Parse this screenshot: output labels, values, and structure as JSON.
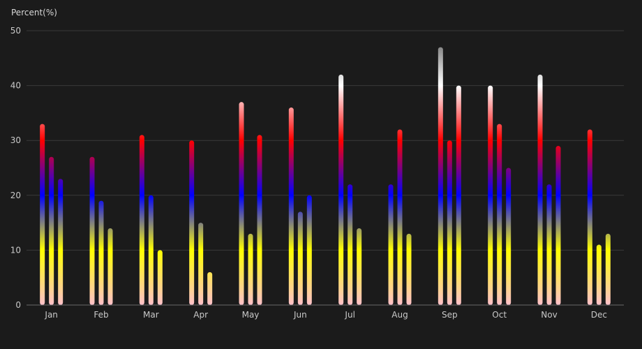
{
  "chart_data": {
    "type": "bar",
    "ylabel": "Percent(%)",
    "ylim": [
      0,
      50
    ],
    "yticks": [
      "0",
      "10",
      "20",
      "30",
      "40",
      "50"
    ],
    "categories": [
      "Jan",
      "Feb",
      "Mar",
      "Apr",
      "May",
      "Jun",
      "Jul",
      "Aug",
      "Sep",
      "Oct",
      "Nov",
      "Dec"
    ],
    "series": [
      {
        "values": [
          33,
          27,
          31,
          30,
          37,
          36,
          42,
          22,
          47,
          40,
          42,
          32
        ]
      },
      {
        "values": [
          27,
          19,
          20,
          15,
          13,
          17,
          22,
          32,
          30,
          33,
          22,
          11
        ]
      },
      {
        "values": [
          23,
          14,
          10,
          6,
          31,
          20,
          14,
          13,
          40,
          25,
          29,
          13
        ]
      }
    ],
    "gradient": {
      "description_stops": [
        {
          "value": 0,
          "color": "#ffc0cb"
        },
        {
          "value": 10,
          "color": "#ffff00"
        },
        {
          "value": 20,
          "color": "#0000ff"
        },
        {
          "value": 30,
          "color": "#ff0000"
        },
        {
          "value": 40,
          "color": "#ffffff"
        },
        {
          "value": 50,
          "color": "#555555"
        }
      ]
    },
    "grid": true,
    "legend": "none"
  }
}
